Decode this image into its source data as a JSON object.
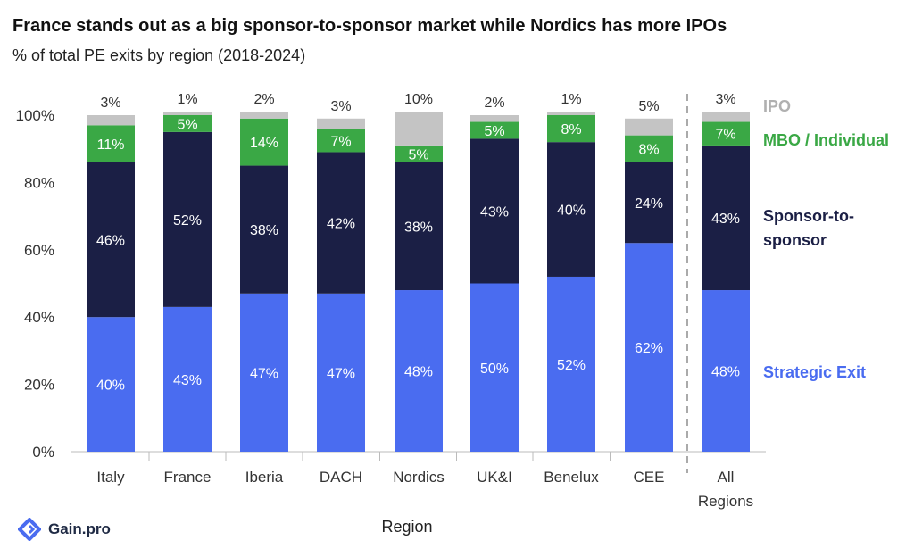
{
  "title": "France stands out as a big sponsor-to-sponsor market while Nordics has more IPOs",
  "subtitle": "% of total PE exits by region (2018-2024)",
  "brand": "Gain.pro",
  "chart_data": {
    "type": "bar",
    "stacked": true,
    "categories": [
      "Italy",
      "France",
      "Iberia",
      "DACH",
      "Nordics",
      "UK&I",
      "Benelux",
      "CEE",
      "All Regions"
    ],
    "xlabel": "Region",
    "ylabel": "",
    "ylim": [
      0,
      100
    ],
    "y_ticks": [
      "0%",
      "20%",
      "40%",
      "60%",
      "80%",
      "100%"
    ],
    "grid": false,
    "legend_position": "right",
    "series": [
      {
        "name": "Strategic Exit",
        "color": "#4a6cf0",
        "values": [
          40,
          43,
          47,
          47,
          48,
          50,
          52,
          62,
          48
        ],
        "labels": [
          "40%",
          "43%",
          "47%",
          "47%",
          "48%",
          "50%",
          "52%",
          "62%",
          "48%"
        ]
      },
      {
        "name": "Sponsor-to-sponsor",
        "color": "#1b1f45",
        "values": [
          46,
          52,
          38,
          42,
          38,
          43,
          40,
          24,
          43
        ],
        "labels": [
          "46%",
          "52%",
          "38%",
          "42%",
          "38%",
          "43%",
          "40%",
          "24%",
          "43%"
        ]
      },
      {
        "name": "MBO / Individual",
        "color": "#3aa845",
        "values": [
          11,
          5,
          14,
          7,
          5,
          5,
          8,
          8,
          7
        ],
        "labels": [
          "11%",
          "5%",
          "14%",
          "7%",
          "5%",
          "5%",
          "8%",
          "8%",
          "7%"
        ]
      },
      {
        "name": "IPO",
        "color": "#c4c4c4",
        "values": [
          3,
          1,
          2,
          3,
          10,
          2,
          1,
          5,
          3
        ],
        "labels": [
          "3%",
          "1%",
          "2%",
          "3%",
          "10%",
          "2%",
          "1%",
          "5%",
          "3%"
        ]
      }
    ],
    "legend_label_colors": {
      "IPO": "#b0b0b0",
      "MBO / Individual": "#3aa845",
      "Sponsor-to-sponsor": "#1b1f45",
      "Strategic Exit": "#4a6cf0"
    }
  }
}
